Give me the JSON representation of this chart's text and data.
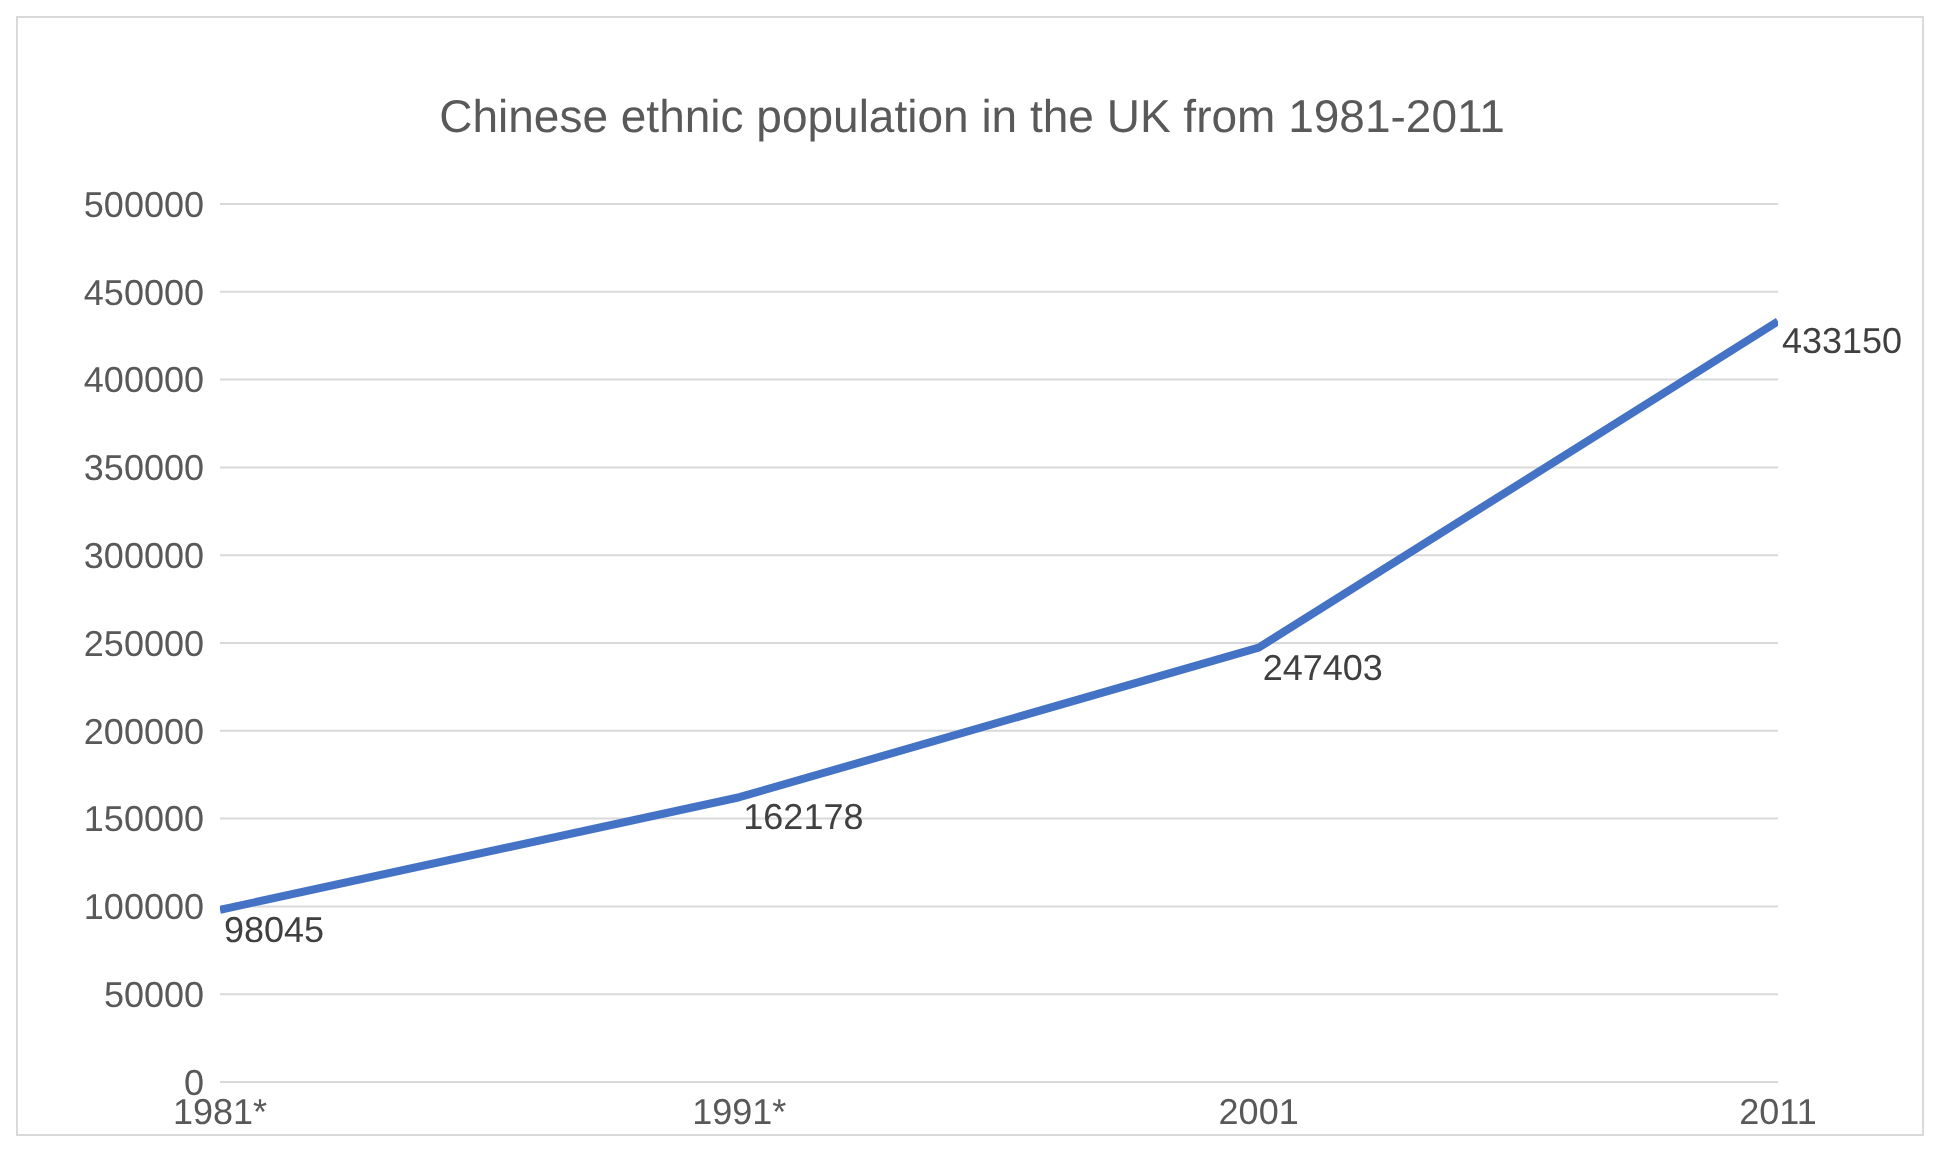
{
  "chart_data": {
    "type": "line",
    "title": "Chinese ethnic population in the UK from 1981-2011",
    "categories": [
      "1981*",
      "1991*",
      "2001",
      "2011"
    ],
    "series": [
      {
        "color": "#4472c4",
        "values": [
          98045,
          162178,
          247403,
          433150
        ]
      }
    ],
    "ylim": [
      0,
      500000
    ],
    "yticks": [
      0,
      50000,
      100000,
      150000,
      200000,
      250000,
      300000,
      350000,
      400000,
      450000,
      500000
    ],
    "grid": "y",
    "data_labels": true,
    "marker": "none",
    "line_style": "solid"
  }
}
